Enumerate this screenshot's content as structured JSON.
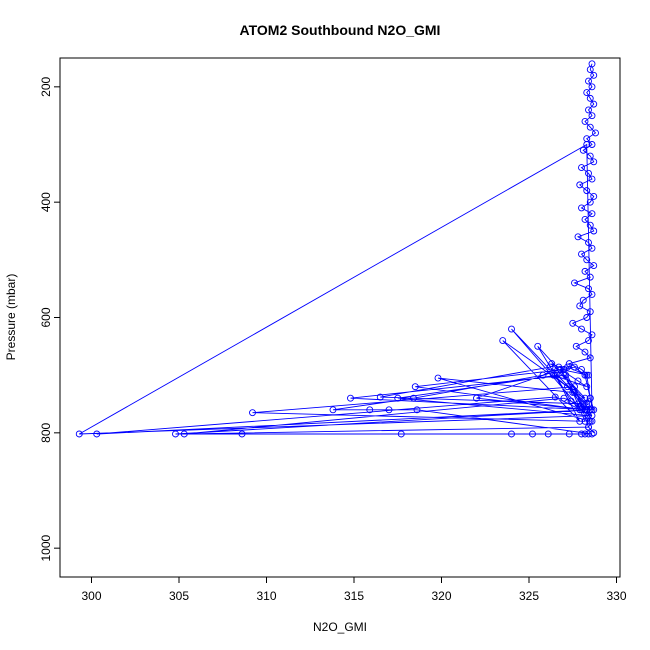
{
  "chart_data": {
    "type": "line",
    "title": "ATOM2 Southbound N2O_GMI",
    "xlabel": "N2O_GMI",
    "ylabel": "Pressure (mbar)",
    "xlim": [
      298.2,
      330.2
    ],
    "ylim": [
      1050,
      150
    ],
    "y_reversed": true,
    "x_ticks": [
      300,
      305,
      310,
      315,
      320,
      325,
      330
    ],
    "y_ticks": [
      200,
      400,
      600,
      800,
      1000
    ],
    "grid": false,
    "legend": "none",
    "series": [
      {
        "color": "#0000ff",
        "marker": "open-circle",
        "x": [
          328.6,
          328.5,
          328.7,
          328.4,
          328.6,
          328.3,
          328.5,
          328.7,
          328.4,
          328.6,
          328.2,
          328.5,
          328.8,
          328.3,
          328.6,
          328.1,
          328.5,
          328.7,
          328.0,
          328.4,
          328.6,
          327.9,
          328.3,
          328.7,
          328.5,
          328.0,
          328.6,
          328.2,
          328.5,
          328.7,
          327.8,
          328.4,
          328.6,
          328.0,
          328.3,
          328.7,
          328.2,
          328.5,
          327.6,
          328.4,
          328.6,
          328.1,
          327.9,
          328.5,
          328.3,
          327.5,
          328.0,
          328.6,
          328.4,
          327.7,
          328.2,
          328.5,
          327.3,
          328.0,
          328.4,
          326.8,
          327.8,
          328.3,
          326.4,
          327.6,
          328.2,
          325.5,
          327.4,
          328.0,
          324.0,
          326.5,
          327.9,
          323.5,
          327.2,
          328.3,
          322.0,
          326.8,
          328.5,
          319.8,
          327.5,
          328.2,
          318.5,
          327.0,
          328.4,
          317.5,
          326.6,
          328.3,
          316.5,
          326.2,
          328.5,
          314.8,
          327.1,
          328.2,
          309.2,
          327.6,
          328.4,
          305.3,
          327.0,
          328.5,
          300.3,
          326.5,
          328.6,
          299.3,
          328.3,
          328.6,
          304.8,
          308.6,
          317.7,
          324.0,
          325.2,
          326.1,
          327.3,
          328.0,
          328.2,
          328.4,
          328.6,
          318.6,
          317.0,
          315.9,
          313.8,
          318.4,
          325.8,
          326.7,
          327.2,
          328.3,
          328.5,
          328.7,
          327.9,
          328.4,
          326.3,
          327.0,
          327.6,
          328.2,
          328.5,
          327.8,
          328.3,
          328.6,
          328.4,
          328.7
        ],
        "y": [
          160,
          170,
          180,
          190,
          200,
          210,
          220,
          230,
          240,
          250,
          260,
          270,
          280,
          290,
          300,
          310,
          320,
          330,
          340,
          350,
          360,
          370,
          380,
          390,
          400,
          410,
          420,
          430,
          440,
          450,
          460,
          470,
          480,
          490,
          500,
          510,
          520,
          530,
          540,
          550,
          560,
          570,
          580,
          590,
          600,
          610,
          620,
          630,
          640,
          650,
          660,
          670,
          680,
          690,
          700,
          690,
          710,
          720,
          700,
          730,
          740,
          650,
          745,
          760,
          620,
          700,
          780,
          640,
          720,
          760,
          740,
          690,
          780,
          705,
          730,
          760,
          720,
          690,
          770,
          740,
          700,
          750,
          738,
          686,
          760,
          740,
          700,
          780,
          765,
          720,
          790,
          802,
          740,
          760,
          802,
          738,
          770,
          802,
          300,
          760,
          802,
          802,
          802,
          802,
          802,
          802,
          802,
          802,
          802,
          802,
          802,
          760,
          760,
          760,
          760,
          740,
          700,
          686,
          686,
          700,
          740,
          760,
          760,
          750,
          680,
          690,
          686,
          700,
          740,
          750,
          760,
          780,
          790,
          800
        ]
      }
    ]
  }
}
